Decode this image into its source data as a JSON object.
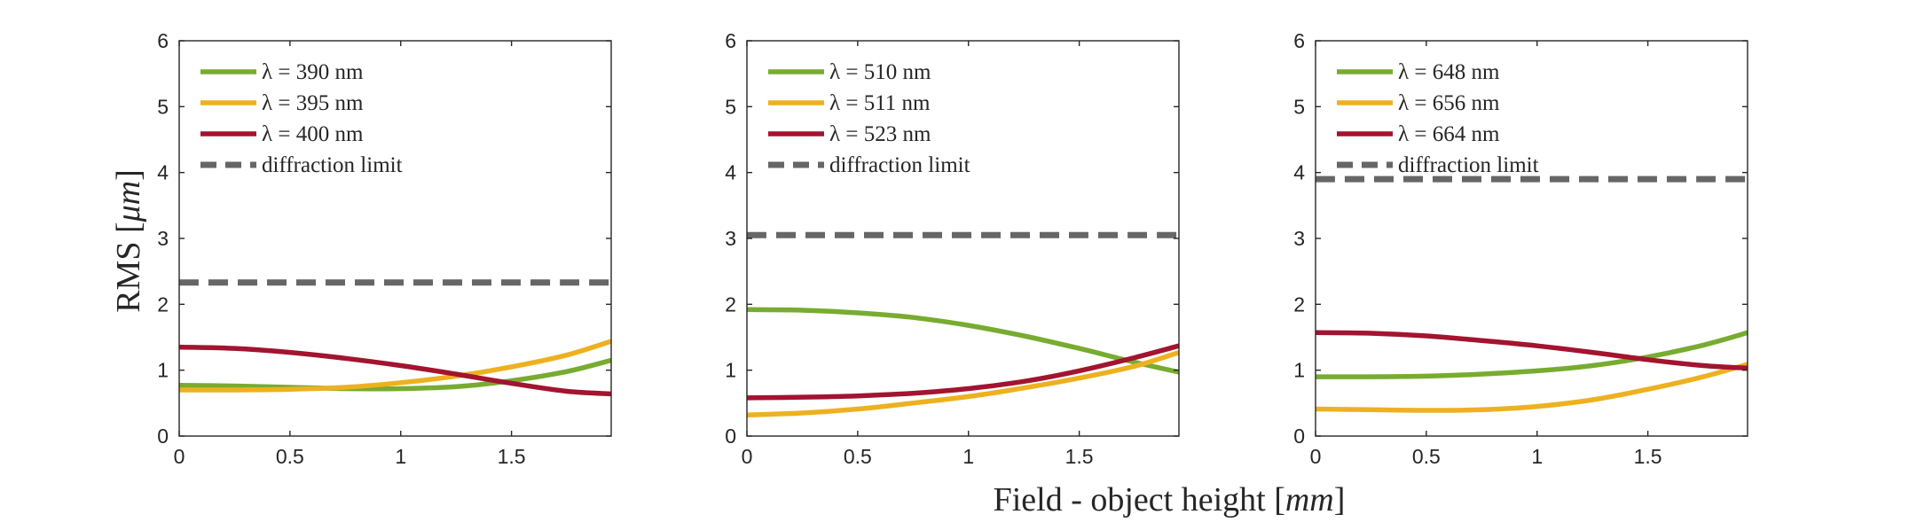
{
  "figure": {
    "xlabel": {
      "prefix": "Field - object height [",
      "unit": "mm",
      "suffix": "]"
    },
    "ylabel": {
      "prefix": "RMS [",
      "unit": "μm",
      "suffix": "]"
    },
    "colors": {
      "green": "#77AC30",
      "yellow": "#EDB120",
      "red": "#A2142F",
      "diffraction": "#666666"
    }
  },
  "chart_data": [
    {
      "type": "line",
      "xlim": [
        0,
        1.95
      ],
      "ylim": [
        0,
        6
      ],
      "xticks": [
        0,
        0.5,
        1,
        1.5
      ],
      "xtick_labels": [
        "0",
        "0.5",
        "1",
        "1.5"
      ],
      "yticks": [
        0,
        1,
        2,
        3,
        4,
        5,
        6
      ],
      "ytick_labels": [
        "0",
        "1",
        "2",
        "3",
        "4",
        "5",
        "6"
      ],
      "legend_position": "top-left",
      "x": [
        0,
        0.25,
        0.5,
        0.75,
        1.0,
        1.25,
        1.5,
        1.75,
        1.95
      ],
      "series": [
        {
          "name": "λ = 390 nm",
          "color": "green",
          "values": [
            0.77,
            0.76,
            0.74,
            0.72,
            0.72,
            0.75,
            0.84,
            0.98,
            1.15
          ]
        },
        {
          "name": "λ = 395 nm",
          "color": "yellow",
          "values": [
            0.7,
            0.7,
            0.71,
            0.74,
            0.81,
            0.91,
            1.05,
            1.23,
            1.44
          ]
        },
        {
          "name": "λ = 400 nm",
          "color": "red",
          "values": [
            1.35,
            1.33,
            1.27,
            1.18,
            1.07,
            0.94,
            0.8,
            0.68,
            0.64
          ]
        },
        {
          "name": "diffraction limit",
          "color": "diffraction",
          "dashed": true,
          "values": [
            2.33,
            2.33,
            2.33,
            2.33,
            2.33,
            2.33,
            2.33,
            2.33,
            2.33
          ]
        }
      ]
    },
    {
      "type": "line",
      "xlim": [
        0,
        1.95
      ],
      "ylim": [
        0,
        6
      ],
      "xticks": [
        0,
        0.5,
        1,
        1.5
      ],
      "xtick_labels": [
        "0",
        "0.5",
        "1",
        "1.5"
      ],
      "yticks": [
        0,
        1,
        2,
        3,
        4,
        5,
        6
      ],
      "ytick_labels": [
        "0",
        "1",
        "2",
        "3",
        "4",
        "5",
        "6"
      ],
      "legend_position": "top-left",
      "x": [
        0,
        0.25,
        0.5,
        0.75,
        1.0,
        1.25,
        1.5,
        1.75,
        1.95
      ],
      "series": [
        {
          "name": "λ = 510 nm",
          "color": "green",
          "values": [
            1.92,
            1.91,
            1.87,
            1.8,
            1.68,
            1.52,
            1.33,
            1.12,
            0.97
          ]
        },
        {
          "name": "λ = 511 nm",
          "color": "yellow",
          "values": [
            0.32,
            0.35,
            0.41,
            0.5,
            0.6,
            0.73,
            0.88,
            1.06,
            1.27
          ]
        },
        {
          "name": "λ = 523 nm",
          "color": "red",
          "values": [
            0.58,
            0.59,
            0.61,
            0.65,
            0.72,
            0.83,
            0.99,
            1.19,
            1.37
          ]
        },
        {
          "name": "diffraction limit",
          "color": "diffraction",
          "dashed": true,
          "values": [
            3.05,
            3.05,
            3.05,
            3.05,
            3.05,
            3.05,
            3.05,
            3.05,
            3.05
          ]
        }
      ]
    },
    {
      "type": "line",
      "xlim": [
        0,
        1.95
      ],
      "ylim": [
        0,
        6
      ],
      "xticks": [
        0,
        0.5,
        1,
        1.5
      ],
      "xtick_labels": [
        "0",
        "0.5",
        "1",
        "1.5"
      ],
      "yticks": [
        0,
        1,
        2,
        3,
        4,
        5,
        6
      ],
      "ytick_labels": [
        "0",
        "1",
        "2",
        "3",
        "4",
        "5",
        "6"
      ],
      "legend_position": "top-left",
      "x": [
        0,
        0.25,
        0.5,
        0.75,
        1.0,
        1.25,
        1.5,
        1.75,
        1.95
      ],
      "series": [
        {
          "name": "λ = 648 nm",
          "color": "green",
          "values": [
            0.9,
            0.9,
            0.91,
            0.94,
            0.99,
            1.07,
            1.2,
            1.38,
            1.57
          ]
        },
        {
          "name": "λ = 656 nm",
          "color": "yellow",
          "values": [
            0.41,
            0.4,
            0.39,
            0.4,
            0.45,
            0.55,
            0.71,
            0.9,
            1.09
          ]
        },
        {
          "name": "λ = 664 nm",
          "color": "red",
          "values": [
            1.57,
            1.56,
            1.52,
            1.45,
            1.37,
            1.27,
            1.16,
            1.07,
            1.03
          ]
        },
        {
          "name": "diffraction limit",
          "color": "diffraction",
          "dashed": true,
          "values": [
            3.9,
            3.9,
            3.9,
            3.9,
            3.9,
            3.9,
            3.9,
            3.9,
            3.9
          ]
        }
      ]
    }
  ]
}
